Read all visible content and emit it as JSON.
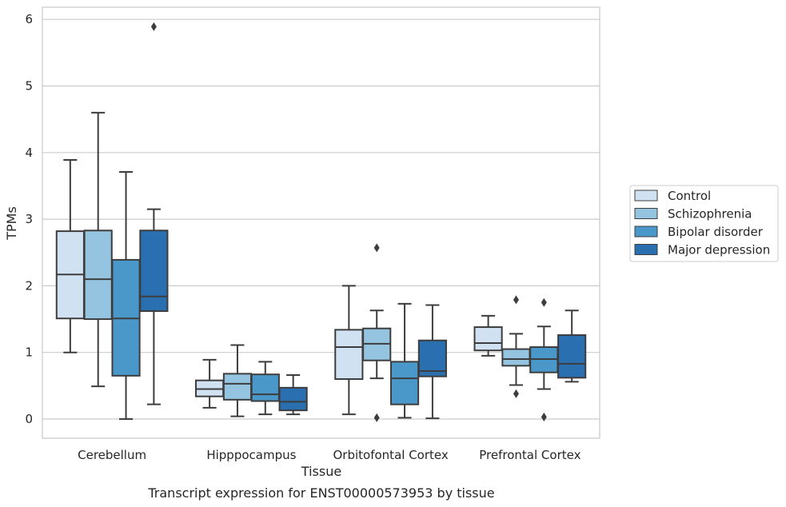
{
  "chart_data": {
    "type": "boxplot",
    "title": "",
    "caption": "Transcript expression for ENST00000573953 by tissue",
    "xlabel": "Tissue",
    "ylabel": "TPMs",
    "ylim": [
      -0.28,
      6.18
    ],
    "yticks": [
      0,
      1,
      2,
      3,
      4,
      5,
      6
    ],
    "grid": true,
    "legend_position": "right",
    "categories": [
      "Cerebellum",
      "Hipppocampus",
      "Orbitofontal Cortex",
      "Prefrontal Cortex"
    ],
    "series": [
      {
        "name": "Control",
        "color": "#d0e1f2",
        "boxes": [
          {
            "whisker_low": 1.0,
            "q1": 1.51,
            "median": 2.17,
            "q3": 2.82,
            "whisker_high": 3.89,
            "outliers": []
          },
          {
            "whisker_low": 0.17,
            "q1": 0.34,
            "median": 0.45,
            "q3": 0.58,
            "whisker_high": 0.89,
            "outliers": []
          },
          {
            "whisker_low": 0.07,
            "q1": 0.6,
            "median": 1.08,
            "q3": 1.34,
            "whisker_high": 2.0,
            "outliers": []
          },
          {
            "whisker_low": 0.95,
            "q1": 1.03,
            "median": 1.14,
            "q3": 1.38,
            "whisker_high": 1.55,
            "outliers": []
          }
        ]
      },
      {
        "name": "Schizophrenia",
        "color": "#94c4df",
        "boxes": [
          {
            "whisker_low": 0.49,
            "q1": 1.5,
            "median": 2.1,
            "q3": 2.83,
            "whisker_high": 4.6,
            "outliers": []
          },
          {
            "whisker_low": 0.04,
            "q1": 0.29,
            "median": 0.53,
            "q3": 0.68,
            "whisker_high": 1.11,
            "outliers": []
          },
          {
            "whisker_low": 0.61,
            "q1": 0.88,
            "median": 1.13,
            "q3": 1.36,
            "whisker_high": 1.63,
            "outliers": [
              2.57,
              0.02
            ]
          },
          {
            "whisker_low": 0.51,
            "q1": 0.8,
            "median": 0.9,
            "q3": 1.05,
            "whisker_high": 1.28,
            "outliers": [
              1.79,
              0.38
            ]
          }
        ]
      },
      {
        "name": "Bipolar disorder",
        "color": "#4a98c9",
        "boxes": [
          {
            "whisker_low": 0.0,
            "q1": 0.65,
            "median": 1.51,
            "q3": 2.39,
            "whisker_high": 3.71,
            "outliers": []
          },
          {
            "whisker_low": 0.07,
            "q1": 0.27,
            "median": 0.37,
            "q3": 0.67,
            "whisker_high": 0.86,
            "outliers": []
          },
          {
            "whisker_low": 0.02,
            "q1": 0.22,
            "median": 0.61,
            "q3": 0.86,
            "whisker_high": 1.73,
            "outliers": []
          },
          {
            "whisker_low": 0.45,
            "q1": 0.7,
            "median": 0.9,
            "q3": 1.08,
            "whisker_high": 1.39,
            "outliers": [
              1.75,
              0.03
            ]
          }
        ]
      },
      {
        "name": "Major depression",
        "color": "#2a6fb0",
        "boxes": [
          {
            "whisker_low": 0.22,
            "q1": 1.62,
            "median": 1.84,
            "q3": 2.83,
            "whisker_high": 3.15,
            "outliers": [
              5.89
            ]
          },
          {
            "whisker_low": 0.07,
            "q1": 0.13,
            "median": 0.26,
            "q3": 0.47,
            "whisker_high": 0.66,
            "outliers": []
          },
          {
            "whisker_low": 0.01,
            "q1": 0.64,
            "median": 0.72,
            "q3": 1.18,
            "whisker_high": 1.71,
            "outliers": []
          },
          {
            "whisker_low": 0.56,
            "q1": 0.62,
            "median": 0.83,
            "q3": 1.26,
            "whisker_high": 1.63,
            "outliers": []
          }
        ]
      }
    ]
  }
}
